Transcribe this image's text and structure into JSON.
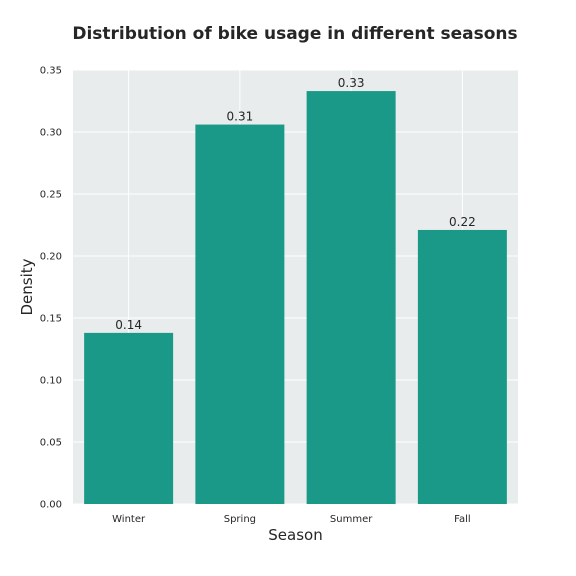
{
  "chart_data": {
    "type": "bar",
    "title": "Distribution of bike usage in different seasons",
    "xlabel": "Season",
    "ylabel": "Density",
    "categories": [
      "Winter",
      "Spring",
      "Summer",
      "Fall"
    ],
    "values": [
      0.138,
      0.306,
      0.333,
      0.221
    ],
    "data_labels": [
      "0.14",
      "0.31",
      "0.33",
      "0.22"
    ],
    "ylim": [
      0,
      0.35
    ],
    "yticks": [
      0.0,
      0.05,
      0.1,
      0.15,
      0.2,
      0.25,
      0.3,
      0.35
    ],
    "ytick_labels": [
      "0.00",
      "0.05",
      "0.10",
      "0.15",
      "0.20",
      "0.25",
      "0.30",
      "0.35"
    ],
    "grid": true,
    "bar_color": "#1a9988",
    "plot_background": "#e8ecec"
  }
}
